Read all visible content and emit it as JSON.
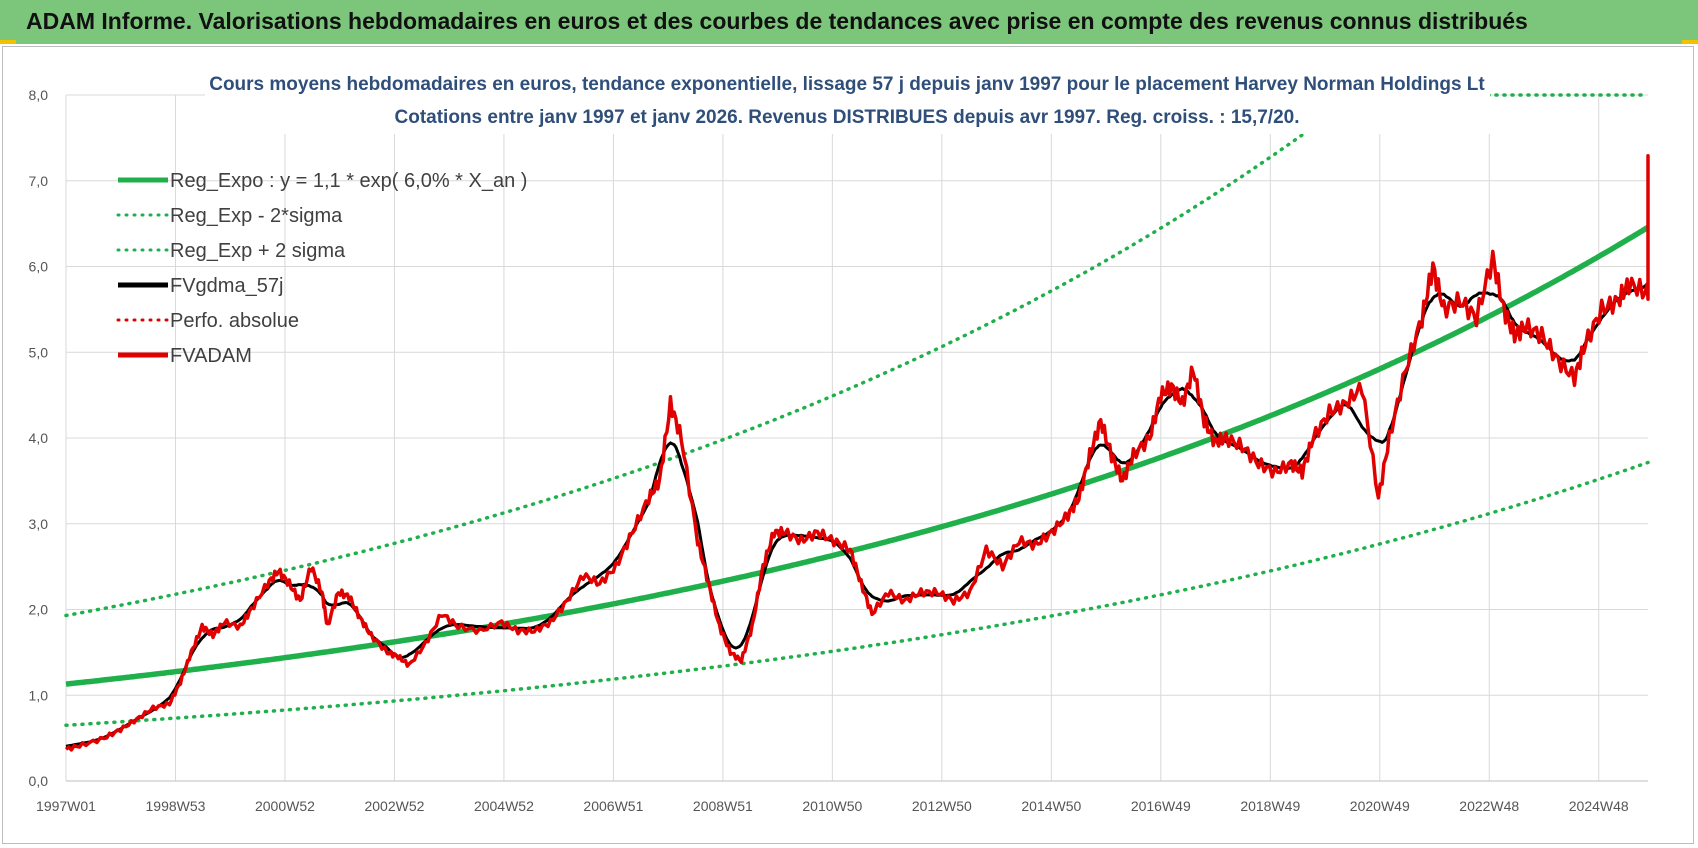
{
  "header": {
    "title": "ADAM Informe. Valorisations hebdomadaires en euros et des courbes de tendances avec prise en compte des revenus connus distribués"
  },
  "chart_data": {
    "type": "line",
    "title_line1": "Cours moyens hebdomadaires en euros, tendance exponentielle, lissage 57 j depuis janv 1997 pour le placement Harvey Norman Holdings Lt",
    "title_line2": "Cotations entre janv 1997 et janv 2026. Revenus DISTRIBUES depuis avr 1997. Reg. croiss. : 15,7/20.",
    "xlabel": "",
    "ylabel": "",
    "x_ticks": [
      "1997W01",
      "1998W53",
      "2000W52",
      "2002W52",
      "2004W52",
      "2006W51",
      "2008W51",
      "2010W50",
      "2012W50",
      "2014W50",
      "2016W49",
      "2018W49",
      "2020W49",
      "2022W48",
      "2024W48"
    ],
    "xlim": [
      1997.0,
      2026.05
    ],
    "y_ticks": [
      "0,0",
      "1,0",
      "2,0",
      "3,0",
      "4,0",
      "5,0",
      "6,0",
      "7,0",
      "8,0"
    ],
    "ylim": [
      0,
      8
    ],
    "grid": true,
    "legend_position": "top-left",
    "series": [
      {
        "name": "Reg_Expo : y = 1,1 * exp( 6,0% *  X_an )",
        "color": "#1fb04b",
        "style": "solid",
        "a": 1.13,
        "rate": 0.06
      },
      {
        "name": "Reg_Exp - 2*sigma",
        "color": "#1fb04b",
        "style": "dotted",
        "a": 0.65,
        "rate": 0.06
      },
      {
        "name": "Reg_Exp + 2 sigma",
        "color": "#1fb04b",
        "style": "dotted",
        "a": 1.93,
        "rate": 0.06
      },
      {
        "name": "FVgdma_57j",
        "color": "#000000",
        "style": "solid"
      },
      {
        "name": "Perfo. absolue",
        "color": "#e00000",
        "style": "dotted"
      },
      {
        "name": "FVADAM",
        "color": "#e00000",
        "style": "solid",
        "points": [
          [
            1997.0,
            0.37
          ],
          [
            1997.3,
            0.42
          ],
          [
            1997.7,
            0.5
          ],
          [
            1998.0,
            0.6
          ],
          [
            1998.3,
            0.72
          ],
          [
            1998.6,
            0.85
          ],
          [
            1998.9,
            0.9
          ],
          [
            1999.1,
            1.15
          ],
          [
            1999.3,
            1.5
          ],
          [
            1999.5,
            1.8
          ],
          [
            1999.7,
            1.7
          ],
          [
            1999.9,
            1.85
          ],
          [
            2000.2,
            1.8
          ],
          [
            2000.4,
            2.0
          ],
          [
            2000.7,
            2.3
          ],
          [
            2000.9,
            2.45
          ],
          [
            2001.1,
            2.3
          ],
          [
            2001.3,
            2.1
          ],
          [
            2001.5,
            2.5
          ],
          [
            2001.7,
            2.2
          ],
          [
            2001.8,
            1.8
          ],
          [
            2002.0,
            2.2
          ],
          [
            2002.2,
            2.15
          ],
          [
            2002.4,
            1.9
          ],
          [
            2002.6,
            1.7
          ],
          [
            2002.9,
            1.5
          ],
          [
            2003.1,
            1.45
          ],
          [
            2003.3,
            1.35
          ],
          [
            2003.6,
            1.6
          ],
          [
            2003.9,
            1.95
          ],
          [
            2004.2,
            1.8
          ],
          [
            2004.6,
            1.75
          ],
          [
            2005.0,
            1.85
          ],
          [
            2005.3,
            1.75
          ],
          [
            2005.6,
            1.75
          ],
          [
            2005.9,
            1.85
          ],
          [
            2006.2,
            2.1
          ],
          [
            2006.5,
            2.4
          ],
          [
            2006.8,
            2.3
          ],
          [
            2007.1,
            2.5
          ],
          [
            2007.4,
            2.9
          ],
          [
            2007.7,
            3.3
          ],
          [
            2007.9,
            3.5
          ],
          [
            2008.1,
            4.4
          ],
          [
            2008.3,
            4.0
          ],
          [
            2008.6,
            2.8
          ],
          [
            2008.8,
            2.3
          ],
          [
            2009.0,
            1.8
          ],
          [
            2009.2,
            1.5
          ],
          [
            2009.4,
            1.4
          ],
          [
            2009.6,
            1.8
          ],
          [
            2009.8,
            2.5
          ],
          [
            2010.0,
            2.9
          ],
          [
            2010.2,
            2.9
          ],
          [
            2010.5,
            2.8
          ],
          [
            2010.8,
            2.9
          ],
          [
            2011.1,
            2.8
          ],
          [
            2011.4,
            2.7
          ],
          [
            2011.6,
            2.3
          ],
          [
            2011.8,
            1.95
          ],
          [
            2012.1,
            2.2
          ],
          [
            2012.4,
            2.1
          ],
          [
            2012.7,
            2.2
          ],
          [
            2013.0,
            2.2
          ],
          [
            2013.3,
            2.1
          ],
          [
            2013.6,
            2.2
          ],
          [
            2013.9,
            2.7
          ],
          [
            2014.2,
            2.5
          ],
          [
            2014.5,
            2.8
          ],
          [
            2014.8,
            2.75
          ],
          [
            2015.1,
            2.9
          ],
          [
            2015.4,
            3.1
          ],
          [
            2015.6,
            3.3
          ],
          [
            2015.8,
            3.8
          ],
          [
            2016.0,
            4.2
          ],
          [
            2016.2,
            3.8
          ],
          [
            2016.4,
            3.5
          ],
          [
            2016.6,
            3.8
          ],
          [
            2016.9,
            4.0
          ],
          [
            2017.1,
            4.5
          ],
          [
            2017.3,
            4.6
          ],
          [
            2017.5,
            4.4
          ],
          [
            2017.7,
            4.8
          ],
          [
            2017.9,
            4.2
          ],
          [
            2018.1,
            3.95
          ],
          [
            2018.3,
            4.0
          ],
          [
            2018.6,
            3.9
          ],
          [
            2018.9,
            3.7
          ],
          [
            2019.2,
            3.6
          ],
          [
            2019.5,
            3.7
          ],
          [
            2019.7,
            3.6
          ],
          [
            2019.9,
            4.0
          ],
          [
            2020.2,
            4.3
          ],
          [
            2020.5,
            4.4
          ],
          [
            2020.8,
            4.6
          ],
          [
            2021.1,
            3.3
          ],
          [
            2021.3,
            4.0
          ],
          [
            2021.6,
            4.8
          ],
          [
            2021.9,
            5.4
          ],
          [
            2022.1,
            6.0
          ],
          [
            2022.3,
            5.5
          ],
          [
            2022.6,
            5.6
          ],
          [
            2022.9,
            5.4
          ],
          [
            2023.2,
            6.1
          ],
          [
            2023.4,
            5.5
          ],
          [
            2023.6,
            5.2
          ],
          [
            2023.8,
            5.3
          ],
          [
            2024.1,
            5.2
          ],
          [
            2024.4,
            4.9
          ],
          [
            2024.7,
            4.7
          ],
          [
            2024.9,
            5.1
          ],
          [
            2025.2,
            5.5
          ],
          [
            2025.5,
            5.6
          ],
          [
            2025.7,
            5.8
          ],
          [
            2026.0,
            5.7
          ],
          [
            2026.2,
            5.8
          ],
          [
            2026.4,
            6.3
          ],
          [
            2026.6,
            7.2
          ],
          [
            2026.8,
            7.0
          ],
          [
            2026.9,
            6.95
          ]
        ]
      }
    ]
  }
}
